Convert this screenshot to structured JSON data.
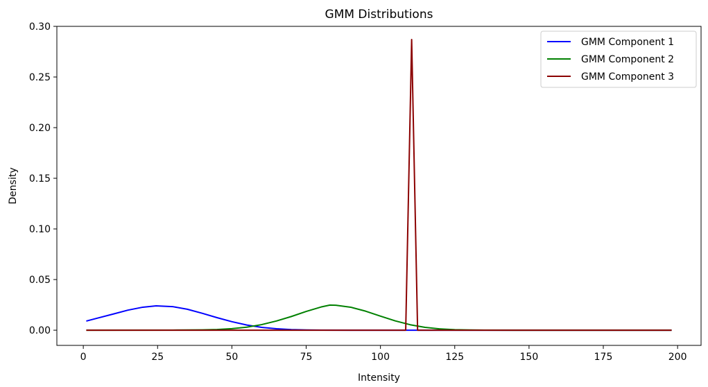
{
  "chart_data": {
    "type": "line",
    "title": "GMM Distributions",
    "xlabel": "Intensity",
    "ylabel": "Density",
    "xlim": [
      -8.9,
      207.9
    ],
    "ylim": [
      -0.015,
      0.3
    ],
    "xticks": [
      0,
      25,
      50,
      75,
      100,
      125,
      150,
      175,
      200
    ],
    "xtick_labels": [
      "0",
      "25",
      "50",
      "75",
      "100",
      "125",
      "150",
      "175",
      "200"
    ],
    "yticks": [
      0.0,
      0.05,
      0.1,
      0.15,
      0.2,
      0.25,
      0.3
    ],
    "ytick_labels": [
      "0.00",
      "0.05",
      "0.10",
      "0.15",
      "0.20",
      "0.25",
      "0.30"
    ],
    "grid": false,
    "legend_position": "top-right",
    "x_range": [
      1,
      198
    ],
    "series": [
      {
        "name": "GMM Component 1",
        "color": "#0000ff",
        "peak_x": 24.5,
        "peak_y": 0.024,
        "points": [
          [
            1,
            0.009
          ],
          [
            5,
            0.0121
          ],
          [
            10,
            0.0159
          ],
          [
            15,
            0.0198
          ],
          [
            20,
            0.0227
          ],
          [
            24.5,
            0.024
          ],
          [
            30,
            0.0233
          ],
          [
            35,
            0.0207
          ],
          [
            40,
            0.0167
          ],
          [
            45,
            0.0124
          ],
          [
            50,
            0.0084
          ],
          [
            55,
            0.0051
          ],
          [
            60,
            0.0028
          ],
          [
            65,
            0.0014
          ],
          [
            70,
            0.0006
          ],
          [
            75,
            0.0002
          ],
          [
            80,
            0.0001
          ],
          [
            90,
            0.0
          ],
          [
            198,
            0.0
          ]
        ]
      },
      {
        "name": "GMM Component 2",
        "color": "#008000",
        "peak_x": 83,
        "peak_y": 0.0248,
        "points": [
          [
            1,
            0.0
          ],
          [
            30,
            0.0001
          ],
          [
            40,
            0.0003
          ],
          [
            45,
            0.0007
          ],
          [
            50,
            0.0015
          ],
          [
            55,
            0.003
          ],
          [
            60,
            0.0055
          ],
          [
            65,
            0.0091
          ],
          [
            70,
            0.0135
          ],
          [
            75,
            0.0185
          ],
          [
            80,
            0.0229
          ],
          [
            83,
            0.0248
          ],
          [
            85,
            0.0246
          ],
          [
            90,
            0.0227
          ],
          [
            95,
            0.0188
          ],
          [
            100,
            0.0139
          ],
          [
            105,
            0.0092
          ],
          [
            110,
            0.0054
          ],
          [
            115,
            0.0028
          ],
          [
            120,
            0.0013
          ],
          [
            125,
            0.0005
          ],
          [
            130,
            0.0002
          ],
          [
            135,
            0.0001
          ],
          [
            145,
            0.0
          ],
          [
            198,
            0.0
          ]
        ]
      },
      {
        "name": "GMM Component 3",
        "color": "#8b0000",
        "peak_x": 110.5,
        "peak_y": 0.287,
        "points": [
          [
            1,
            0.0
          ],
          [
            108.5,
            0.0
          ],
          [
            110.5,
            0.287
          ],
          [
            112.5,
            0.0
          ],
          [
            198,
            0.0
          ]
        ]
      }
    ]
  }
}
